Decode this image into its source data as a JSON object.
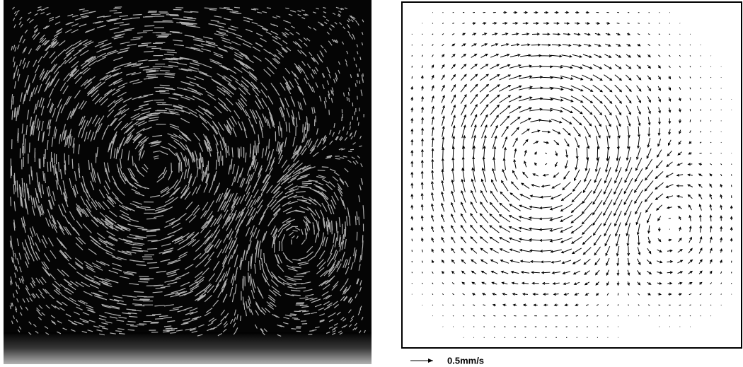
{
  "scale_label": "0.5mm/s"
}
